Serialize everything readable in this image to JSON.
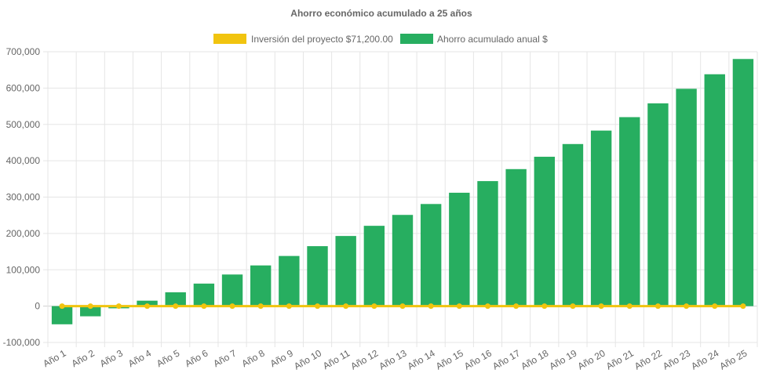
{
  "chart_data": {
    "type": "bar",
    "title": "Ahorro económico acumulado a 25 años",
    "categories": [
      "Año 1",
      "Año 2",
      "Año 3",
      "Año 4",
      "Año 5",
      "Año 6",
      "Año 7",
      "Año 8",
      "Año 9",
      "Año 10",
      "Año 11",
      "Año 12",
      "Año 13",
      "Año 14",
      "Año 15",
      "Año 16",
      "Año 17",
      "Año 18",
      "Año 19",
      "Año 20",
      "Año 21",
      "Año 22",
      "Año 23",
      "Año 24",
      "Año 25"
    ],
    "series": [
      {
        "name": "Inversión del proyecto $71,200.00",
        "type": "line",
        "color": "#f1c40f",
        "values": [
          0,
          0,
          0,
          0,
          0,
          0,
          0,
          0,
          0,
          0,
          0,
          0,
          0,
          0,
          0,
          0,
          0,
          0,
          0,
          0,
          0,
          0,
          0,
          0,
          0
        ]
      },
      {
        "name": "Ahorro acumulado anual $",
        "type": "bar",
        "color": "#27ae60",
        "values": [
          -50000,
          -28000,
          -6000,
          15000,
          38000,
          62000,
          87000,
          112000,
          138000,
          165000,
          193000,
          221000,
          251000,
          281000,
          312000,
          344000,
          377000,
          411000,
          446000,
          483000,
          520000,
          558000,
          598000,
          638000,
          680000
        ]
      }
    ],
    "ylim": [
      -100000,
      700000
    ],
    "yticks": [
      "700,000",
      "600,000",
      "500,000",
      "400,000",
      "300,000",
      "200,000",
      "100,000",
      "0",
      "-100,000"
    ],
    "ytick_values": [
      700000,
      600000,
      500000,
      400000,
      300000,
      200000,
      100000,
      0,
      -100000
    ],
    "grid": true,
    "legend_position": "top"
  }
}
